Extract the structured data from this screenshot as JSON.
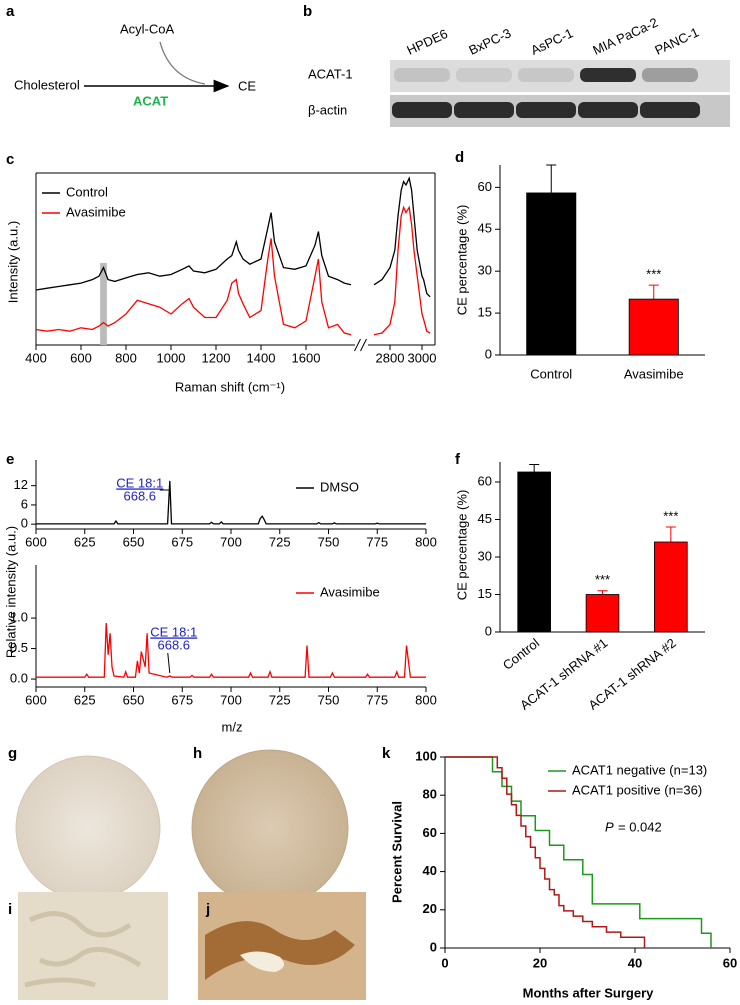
{
  "panel_labels": [
    "a",
    "b",
    "c",
    "d",
    "e",
    "f",
    "g",
    "h",
    "i",
    "j",
    "k"
  ],
  "scheme": {
    "substrate": "Acyl-CoA",
    "reactant": "Cholesterol",
    "enzyme": "ACAT",
    "product": "CE",
    "enzyme_color": "#1db34a"
  },
  "blot": {
    "lanes": [
      "HPDE6",
      "BxPC-3",
      "AsPC-1",
      "MIA PaCa-2",
      "PANC-1"
    ],
    "rows": [
      "ACAT-1",
      "β-actin"
    ]
  },
  "chart_data": [
    {
      "type": "line",
      "ylabel": "Intensity (a.u.)",
      "xlabel": "Raman shift (cm⁻¹)",
      "legend": "upper left",
      "x": [
        400,
        450,
        500,
        550,
        600,
        650,
        680,
        700,
        720,
        750,
        800,
        850,
        900,
        950,
        1000,
        1050,
        1080,
        1100,
        1150,
        1200,
        1250,
        1270,
        1290,
        1300,
        1320,
        1350,
        1400,
        1430,
        1445,
        1460,
        1500,
        1550,
        1600,
        1640,
        1655,
        1670,
        1700,
        1740,
        1770,
        1800,
        2700,
        2750,
        2800,
        2830,
        2850,
        2870,
        2885,
        2900,
        2920,
        2935,
        2950,
        2970,
        3000,
        3010,
        3030,
        3050
      ],
      "xlim": [
        400,
        3050
      ],
      "xbreak": [
        1800,
        2700
      ],
      "xticks": [
        400,
        600,
        800,
        1000,
        1200,
        1400,
        1600,
        2800,
        3000
      ],
      "ylim": [
        0,
        1
      ],
      "shade": [
        685,
        715
      ],
      "series": [
        {
          "name": "Control",
          "color": "#000000",
          "values": [
            0.32,
            0.33,
            0.34,
            0.35,
            0.36,
            0.38,
            0.4,
            0.45,
            0.38,
            0.37,
            0.39,
            0.41,
            0.42,
            0.4,
            0.41,
            0.44,
            0.46,
            0.43,
            0.42,
            0.44,
            0.5,
            0.52,
            0.6,
            0.55,
            0.5,
            0.47,
            0.5,
            0.68,
            0.77,
            0.6,
            0.45,
            0.44,
            0.46,
            0.58,
            0.66,
            0.52,
            0.4,
            0.38,
            0.36,
            0.35,
            0.35,
            0.38,
            0.45,
            0.55,
            0.75,
            0.9,
            0.95,
            0.93,
            0.97,
            0.9,
            0.75,
            0.55,
            0.4,
            0.38,
            0.3,
            0.28
          ]
        },
        {
          "name": "Avasimibe",
          "color": "#ff0000",
          "values": [
            0.09,
            0.08,
            0.09,
            0.08,
            0.1,
            0.09,
            0.11,
            0.13,
            0.11,
            0.13,
            0.18,
            0.26,
            0.24,
            0.22,
            0.18,
            0.24,
            0.27,
            0.22,
            0.16,
            0.16,
            0.26,
            0.36,
            0.38,
            0.3,
            0.24,
            0.16,
            0.2,
            0.5,
            0.62,
            0.4,
            0.12,
            0.1,
            0.14,
            0.4,
            0.5,
            0.25,
            0.1,
            0.12,
            0.07,
            0.06,
            0.06,
            0.07,
            0.12,
            0.25,
            0.55,
            0.75,
            0.8,
            0.77,
            0.8,
            0.7,
            0.55,
            0.4,
            0.18,
            0.15,
            0.08,
            0.07
          ]
        }
      ]
    },
    {
      "type": "bar",
      "ylabel": "CE percentage (%)",
      "categories": [
        "Control",
        "Avasimibe"
      ],
      "values": [
        58,
        20
      ],
      "errors": [
        10,
        5
      ],
      "colors": [
        "#000000",
        "#ff0000"
      ],
      "ylim": [
        0,
        68
      ],
      "yticks": [
        0,
        15,
        30,
        45,
        60
      ],
      "annotations": [
        null,
        "***"
      ]
    },
    {
      "type": "line",
      "ylabel": "Relative intensity (a.u.)",
      "legend": "upper right",
      "x": [
        600,
        640,
        641,
        642,
        667.5,
        668.6,
        669.5,
        689,
        690,
        691,
        694,
        695,
        696,
        714,
        715,
        716,
        717,
        718,
        744,
        745,
        746,
        752,
        753,
        754,
        774,
        775,
        776,
        800
      ],
      "xlim": [
        600,
        800
      ],
      "xticks": [
        600,
        625,
        650,
        675,
        700,
        725,
        750,
        775,
        800
      ],
      "ylim": [
        -1.5,
        20
      ],
      "yticks": [
        0,
        6,
        12
      ],
      "annotation": {
        "text": "CE 18:1",
        "subtext": "668.6",
        "x": 668.6,
        "color": "#2222cc"
      },
      "series": [
        {
          "name": "DMSO",
          "color": "#000000",
          "values": [
            0.1,
            0.1,
            1.0,
            0.1,
            0.1,
            13.5,
            0.1,
            0.1,
            0.6,
            0.1,
            0.1,
            0.7,
            0.1,
            0.1,
            1.8,
            2.5,
            1.5,
            0.1,
            0.1,
            0.5,
            0.1,
            0.1,
            0.4,
            0.1,
            0.1,
            0.3,
            0.1,
            0.1
          ]
        }
      ]
    },
    {
      "type": "line",
      "xlabel": "m/z",
      "legend": "upper right",
      "x": [
        600,
        625,
        626,
        627,
        635,
        636,
        637,
        638,
        639,
        640,
        645,
        646,
        647,
        651,
        652,
        653,
        654,
        656,
        657,
        658,
        667,
        668.6,
        670,
        679,
        680,
        681,
        689,
        690,
        691,
        709,
        710,
        711,
        719,
        720,
        721,
        738,
        739,
        740,
        751,
        752,
        753,
        769,
        770,
        771,
        784,
        785,
        786,
        789,
        790,
        791,
        792,
        800
      ],
      "xlim": [
        600,
        800
      ],
      "xticks": [
        600,
        625,
        650,
        675,
        700,
        725,
        750,
        775,
        800
      ],
      "ylim": [
        -0.13,
        1.87
      ],
      "yticks": [
        {
          "value": 0,
          "label": "0.0"
        },
        {
          "value": 0.5,
          "label": "0.5"
        },
        {
          "value": 1,
          "label": "1.0"
        }
      ],
      "annotation": {
        "text": "CE 18:1",
        "subtext": "668.6",
        "x": 668.6,
        "color": "#2222cc"
      },
      "series": [
        {
          "name": "Avasimibe",
          "color": "#ff0000",
          "values": [
            0.03,
            0.03,
            0.08,
            0.03,
            0.03,
            0.92,
            0.4,
            0.75,
            0.2,
            0.05,
            0.03,
            0.12,
            0.03,
            0.03,
            0.3,
            0.1,
            0.45,
            0.2,
            0.75,
            0.1,
            0.03,
            0.05,
            0.03,
            0.03,
            0.06,
            0.03,
            0.03,
            0.08,
            0.03,
            0.03,
            0.1,
            0.03,
            0.03,
            0.12,
            0.03,
            0.03,
            0.55,
            0.03,
            0.03,
            0.1,
            0.03,
            0.03,
            0.08,
            0.03,
            0.03,
            0.12,
            0.03,
            0.03,
            0.55,
            0.3,
            0.03,
            0.03
          ]
        }
      ]
    },
    {
      "type": "bar",
      "ylabel": "CE percentage (%)",
      "categories": [
        "Control",
        "ACAT-1 shRNA #1",
        "ACAT-1 shRNA #2"
      ],
      "values": [
        64,
        15,
        36
      ],
      "errors": [
        3,
        1.5,
        6
      ],
      "colors": [
        "#000000",
        "#ff0000",
        "#ff0000"
      ],
      "ylim": [
        0,
        68
      ],
      "yticks": [
        0,
        15,
        30,
        45,
        60
      ],
      "annotations": [
        null,
        "***",
        "***"
      ]
    },
    {
      "type": "step",
      "ylabel": "Percent Survival",
      "xlabel": "Months after Surgery",
      "legend": "upper right",
      "xlim": [
        0,
        60
      ],
      "xticks": [
        0,
        20,
        40,
        60
      ],
      "ylim": [
        0,
        100
      ],
      "yticks": [
        0,
        20,
        40,
        60,
        80,
        100
      ],
      "annotation": {
        "italic": "P",
        "text": "= 0.042"
      },
      "series": [
        {
          "name": "ACAT1 negative (n=13)",
          "color": "#1a9a1a",
          "x": [
            0,
            10,
            12,
            14,
            16,
            19,
            22,
            25,
            29,
            31,
            41,
            54,
            56
          ],
          "values": [
            100,
            92.3,
            84.6,
            76.9,
            69.2,
            61.5,
            53.8,
            46.2,
            38.5,
            23.1,
            15.4,
            7.7,
            0
          ]
        },
        {
          "name": "ACAT1 positive (n=36)",
          "color": "#b01818",
          "x": [
            0,
            11,
            12,
            13,
            14,
            15,
            16,
            17,
            18,
            19,
            20,
            21,
            22,
            23,
            24,
            25,
            27,
            29,
            31,
            34,
            37,
            42
          ],
          "values": [
            100,
            94.4,
            88.9,
            80.6,
            75,
            69.4,
            63.9,
            58.3,
            52.8,
            47.2,
            41.7,
            36.1,
            30.6,
            27.8,
            22.2,
            19.4,
            16.7,
            13.9,
            11.1,
            8.3,
            5.6,
            0
          ]
        }
      ]
    }
  ]
}
